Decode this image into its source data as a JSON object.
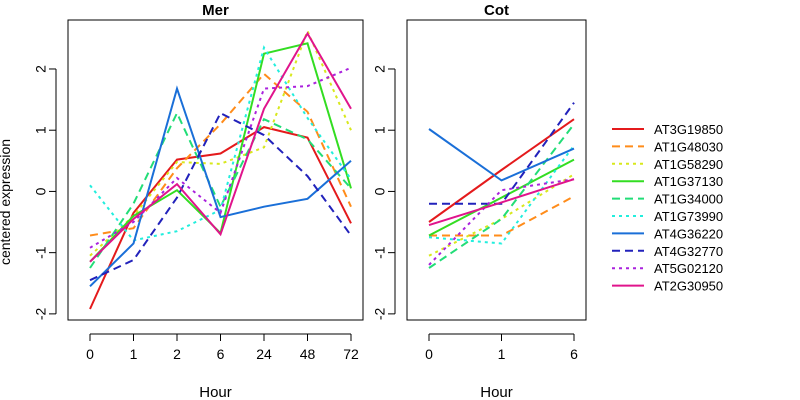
{
  "figure": {
    "ylabel": "centered expression"
  },
  "legend": {
    "placement": "right"
  },
  "series_styles": [
    {
      "name": "AT3G19850",
      "color": "#e41a1c",
      "dash": "solid"
    },
    {
      "name": "AT1G48030",
      "color": "#ff8c1a",
      "dash": "dashed"
    },
    {
      "name": "AT1G58290",
      "color": "#d8e81c",
      "dash": "dotted"
    },
    {
      "name": "AT1G37130",
      "color": "#33dd22",
      "dash": "solid"
    },
    {
      "name": "AT1G34000",
      "color": "#22dd77",
      "dash": "dashed"
    },
    {
      "name": "AT1G73990",
      "color": "#22eedd",
      "dash": "dotted"
    },
    {
      "name": "AT4G36220",
      "color": "#1a6fd8",
      "dash": "solid"
    },
    {
      "name": "AT4G32770",
      "color": "#2222bb",
      "dash": "dashed"
    },
    {
      "name": "AT5G02120",
      "color": "#aa22dd",
      "dash": "dotted"
    },
    {
      "name": "AT2G30950",
      "color": "#e0148c",
      "dash": "solid"
    }
  ],
  "chart_data": [
    {
      "type": "line",
      "title": "Mer",
      "xlabel": "Hour",
      "ylabel": "centered expression",
      "categories": [
        "0",
        "1",
        "2",
        "6",
        "24",
        "48",
        "72"
      ],
      "ylim": [
        -2.1,
        2.8
      ],
      "yticks": [
        -2,
        -1,
        0,
        1,
        2
      ],
      "grid": false,
      "series": [
        {
          "name": "AT3G19850",
          "values": [
            -1.92,
            -0.35,
            0.52,
            0.62,
            1.05,
            0.88,
            -0.52
          ]
        },
        {
          "name": "AT1G48030",
          "values": [
            -0.72,
            -0.6,
            0.38,
            1.1,
            1.92,
            1.3,
            -0.25
          ]
        },
        {
          "name": "AT1G58290",
          "values": [
            -1.05,
            -0.4,
            0.48,
            0.45,
            0.72,
            2.62,
            1.0
          ]
        },
        {
          "name": "AT1G37130",
          "values": [
            -1.15,
            -0.4,
            0.02,
            -0.68,
            2.25,
            2.42,
            0.05
          ]
        },
        {
          "name": "AT1G34000",
          "values": [
            -1.25,
            -0.2,
            1.28,
            -0.25,
            1.18,
            0.85,
            0.05
          ]
        },
        {
          "name": "AT1G73990",
          "values": [
            0.1,
            -0.8,
            -0.65,
            -0.3,
            2.35,
            1.2,
            0.2
          ]
        },
        {
          "name": "AT4G36220",
          "values": [
            -1.55,
            -0.85,
            1.68,
            -0.42,
            -0.25,
            -0.12,
            0.5
          ]
        },
        {
          "name": "AT4G32770",
          "values": [
            -1.45,
            -1.12,
            -0.1,
            1.28,
            0.92,
            0.25,
            -0.72
          ]
        },
        {
          "name": "AT5G02120",
          "values": [
            -0.92,
            -0.5,
            0.22,
            -0.35,
            1.68,
            1.72,
            2.02
          ]
        },
        {
          "name": "AT2G30950",
          "values": [
            -1.15,
            -0.45,
            0.12,
            -0.7,
            1.35,
            2.58,
            1.35
          ]
        }
      ]
    },
    {
      "type": "line",
      "title": "Cot",
      "xlabel": "Hour",
      "ylabel": "",
      "categories": [
        "0",
        "1",
        "6"
      ],
      "ylim": [
        -2.1,
        2.8
      ],
      "yticks": [
        -2,
        -1,
        0,
        1,
        2
      ],
      "grid": false,
      "series": [
        {
          "name": "AT3G19850",
          "values": [
            -0.5,
            0.35,
            1.18
          ]
        },
        {
          "name": "AT1G48030",
          "values": [
            -0.72,
            -0.72,
            -0.08
          ]
        },
        {
          "name": "AT1G58290",
          "values": [
            -1.05,
            -0.45,
            0.28
          ]
        },
        {
          "name": "AT1G37130",
          "values": [
            -0.72,
            -0.1,
            0.52
          ]
        },
        {
          "name": "AT1G34000",
          "values": [
            -1.25,
            -0.45,
            1.1
          ]
        },
        {
          "name": "AT1G73990",
          "values": [
            -0.75,
            -0.85,
            0.75
          ]
        },
        {
          "name": "AT4G36220",
          "values": [
            1.02,
            0.18,
            0.7
          ]
        },
        {
          "name": "AT4G32770",
          "values": [
            -0.2,
            -0.2,
            1.45
          ]
        },
        {
          "name": "AT5G02120",
          "values": [
            -1.2,
            0.02,
            0.2
          ]
        },
        {
          "name": "AT2G30950",
          "values": [
            -0.55,
            -0.18,
            0.2
          ]
        }
      ]
    }
  ]
}
